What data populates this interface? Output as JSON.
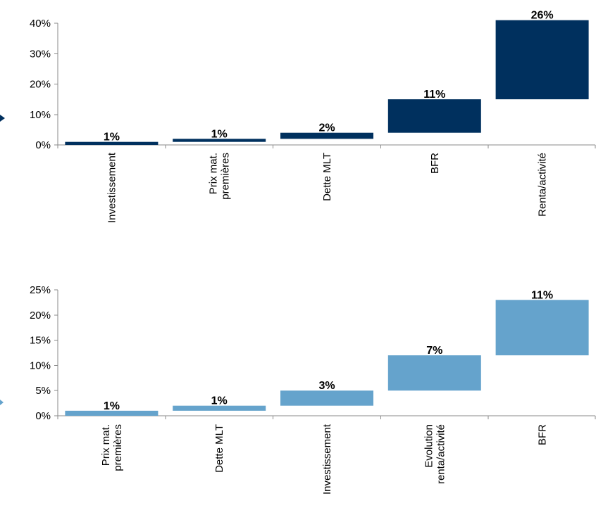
{
  "colors": {
    "chart1_bar": "#00305e",
    "chart2_bar": "#65a3cc",
    "axis": "#8a8a8a"
  },
  "chart_data": [
    {
      "type": "bar",
      "subtype": "waterfall",
      "categories": [
        "Investissement",
        "Prix mat.\npremières",
        "Dette MLT",
        "BFR",
        "Renta/activité"
      ],
      "series": [
        {
          "values": [
            1,
            1,
            2,
            11,
            26
          ],
          "bar_ranges": [
            [
              0,
              1
            ],
            [
              1,
              2
            ],
            [
              2,
              4
            ],
            [
              4,
              15
            ],
            [
              15,
              41
            ]
          ],
          "data_labels": [
            "1%",
            "1%",
            "2%",
            "11%",
            "26%"
          ]
        }
      ],
      "ylim": [
        0,
        40
      ],
      "yticks": [
        0,
        10,
        20,
        30,
        40
      ],
      "ytick_labels": [
        "0%",
        "10%",
        "20%",
        "30%",
        "40%"
      ],
      "xlabel": "",
      "ylabel": "",
      "grid": false,
      "color": "#00305e"
    },
    {
      "type": "bar",
      "subtype": "waterfall",
      "categories": [
        "Prix mat.\npremières",
        "Dette MLT",
        "Investissement",
        "Evolution\nrenta/activité",
        "BFR"
      ],
      "series": [
        {
          "values": [
            1,
            1,
            3,
            7,
            11
          ],
          "bar_ranges": [
            [
              0,
              1
            ],
            [
              1,
              2
            ],
            [
              2,
              5
            ],
            [
              5,
              12
            ],
            [
              12,
              23
            ]
          ],
          "data_labels": [
            "1%",
            "1%",
            "3%",
            "7%",
            "11%"
          ]
        }
      ],
      "ylim": [
        0,
        25
      ],
      "yticks": [
        0,
        5,
        10,
        15,
        20,
        25
      ],
      "ytick_labels": [
        "0%",
        "5%",
        "10%",
        "15%",
        "20%",
        "25%"
      ],
      "xlabel": "",
      "ylabel": "",
      "grid": false,
      "color": "#65a3cc"
    }
  ]
}
